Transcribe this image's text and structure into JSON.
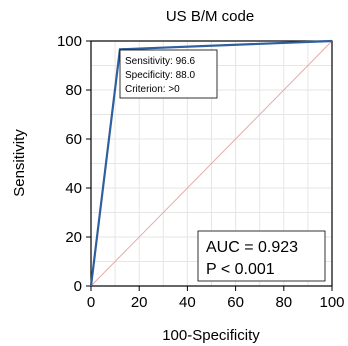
{
  "chart_data": {
    "type": "line",
    "title": "US B/M code",
    "xlabel": "100-Specificity",
    "ylabel": "Sensitivity",
    "xlim": [
      0,
      100
    ],
    "ylim": [
      0,
      100
    ],
    "xticks": [
      0,
      20,
      40,
      60,
      80,
      100
    ],
    "yticks": [
      0,
      20,
      40,
      60,
      80,
      100
    ],
    "grid": true,
    "series": [
      {
        "kind": "roc-curve",
        "color": "#2f5f9e",
        "points": [
          [
            0,
            0
          ],
          [
            12.0,
            96.6
          ],
          [
            100,
            100
          ]
        ]
      },
      {
        "kind": "reference-diagonal",
        "color": "#e8a9a9",
        "points": [
          [
            0,
            0
          ],
          [
            100,
            100
          ]
        ]
      }
    ],
    "annotations": {
      "criterion_point": {
        "lines": [
          "Sensitivity: 96.6",
          "Specificity: 88.0",
          "Criterion: >0"
        ]
      },
      "stats": {
        "lines": [
          "AUC = 0.923",
          "P < 0.001"
        ]
      }
    }
  }
}
